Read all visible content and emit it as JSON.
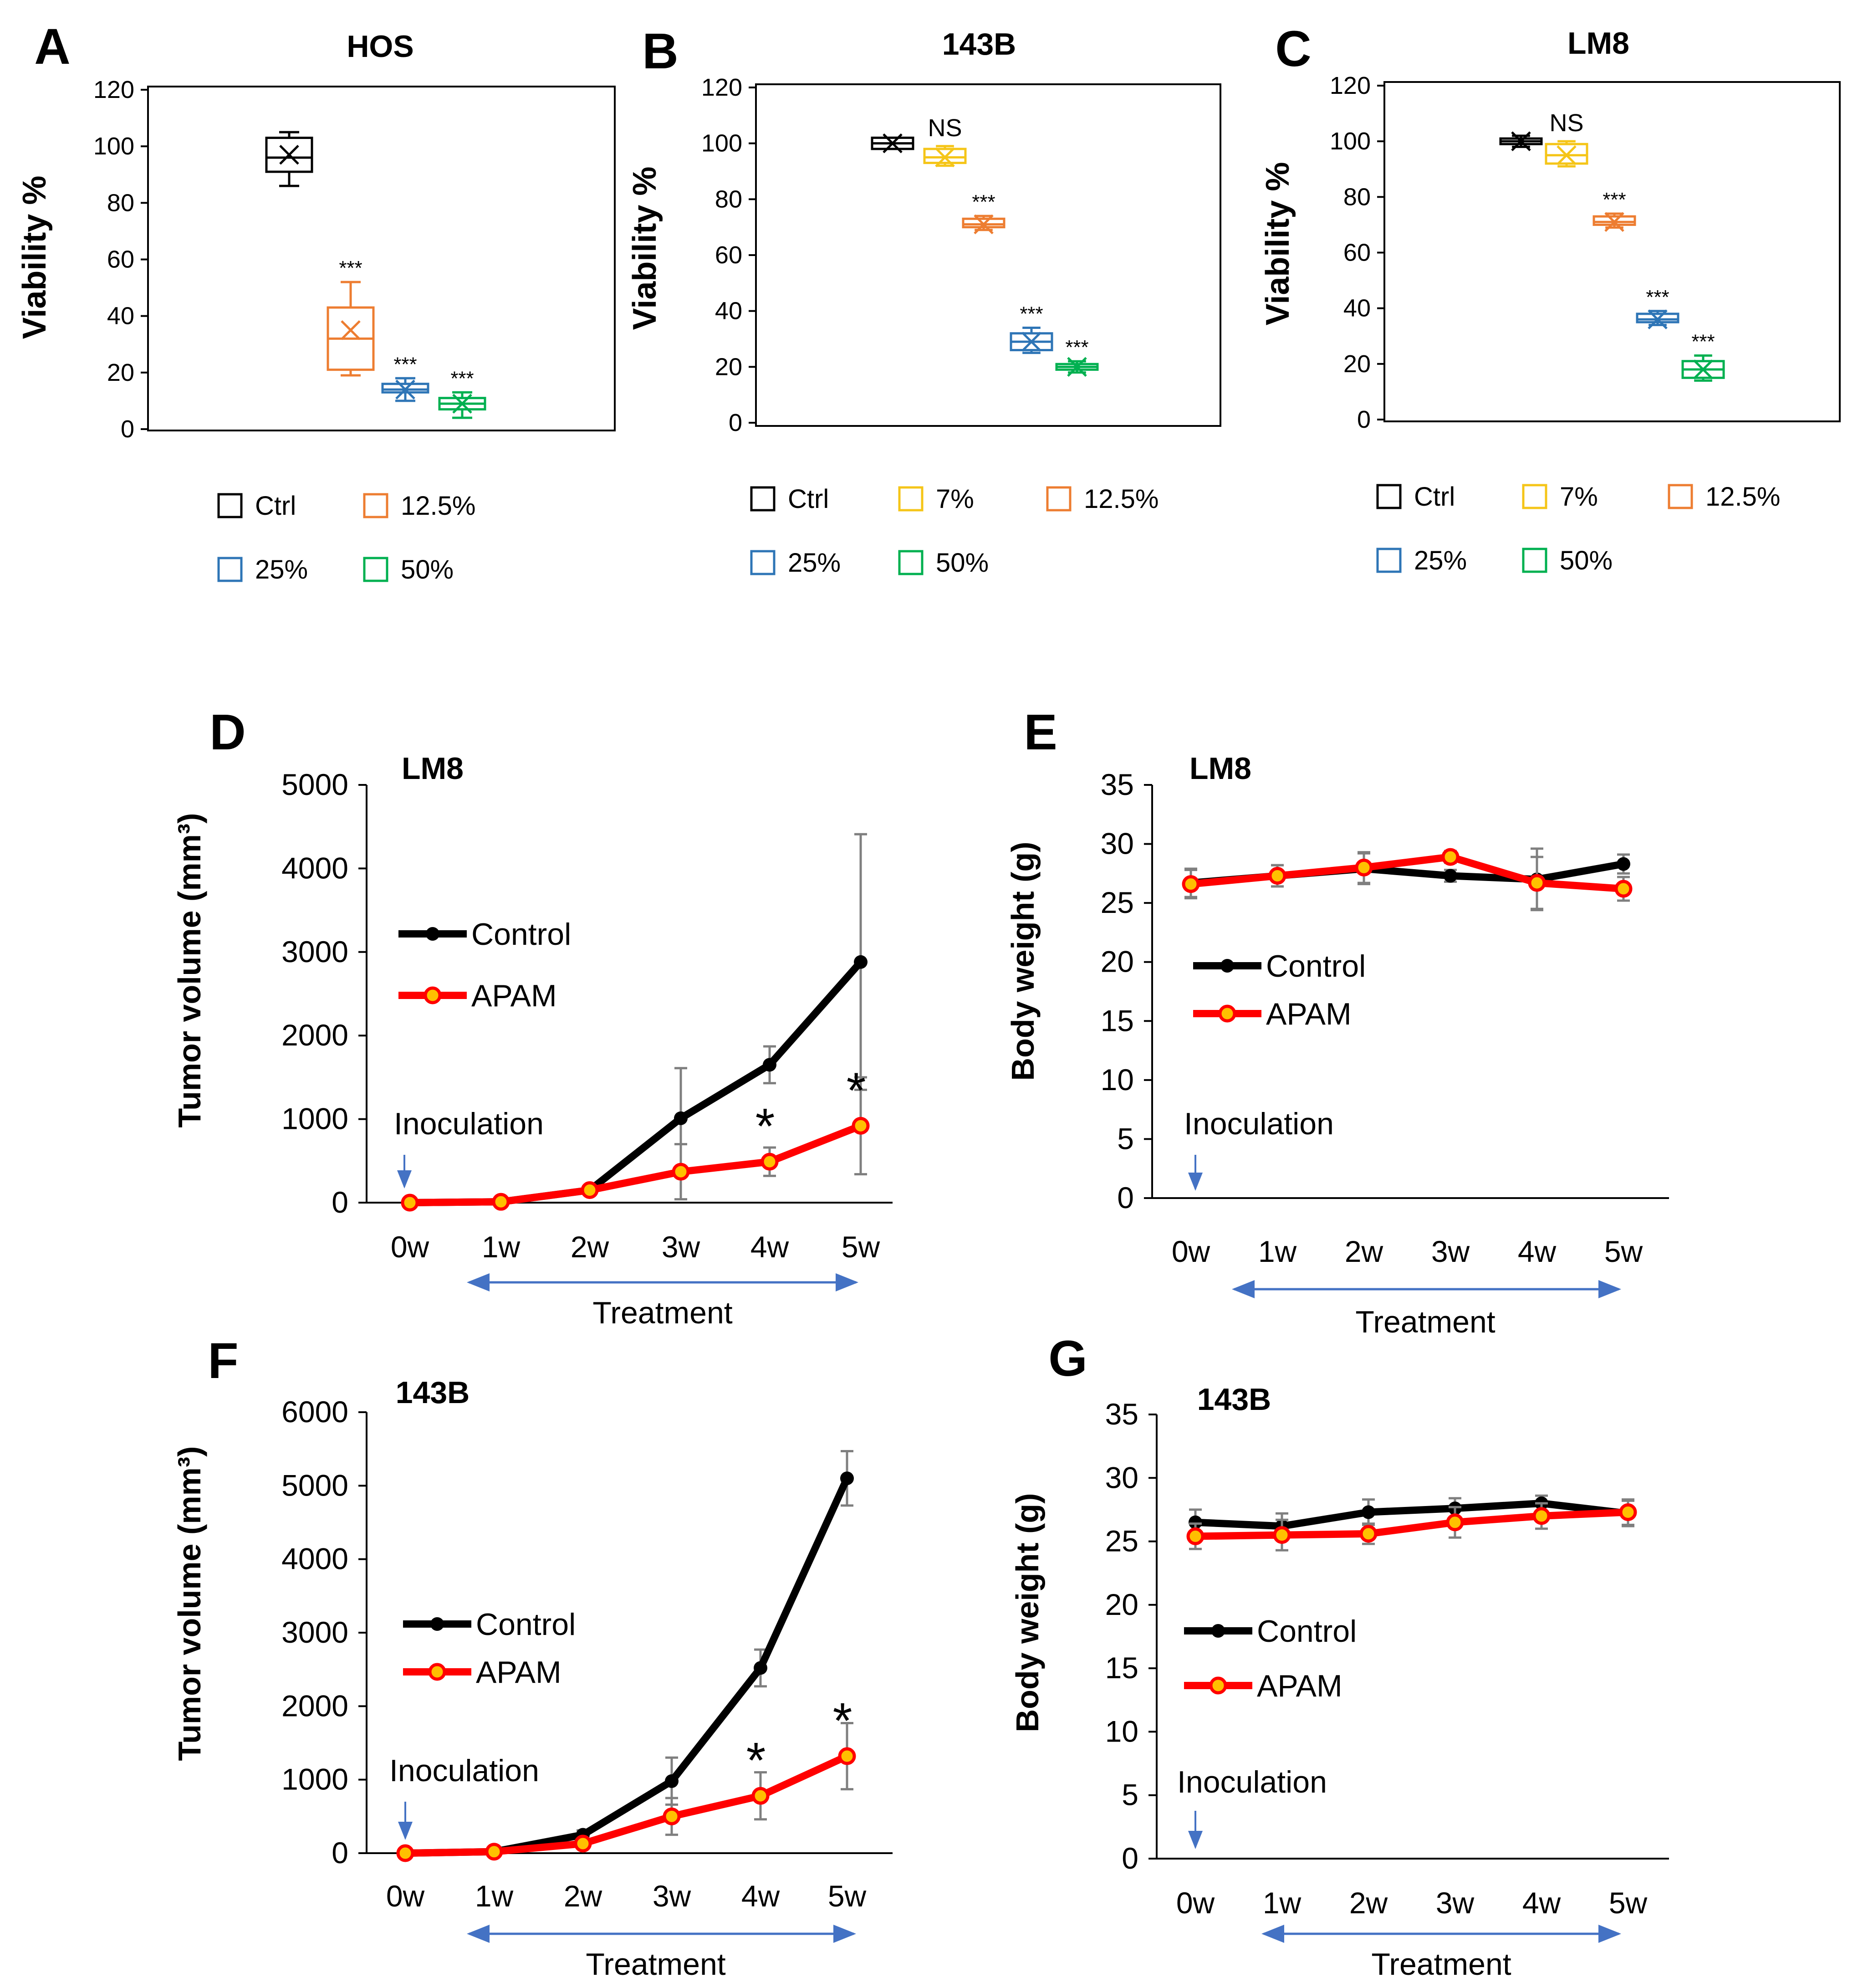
{
  "colors": {
    "ctrl": "#000000",
    "c7": "#f5c518",
    "c12_5": "#ed7d31",
    "c25": "#2e75b6",
    "c50": "#00b050",
    "control_line": "#000000",
    "apam_line": "#ff0000",
    "apam_marker": "#ff0000",
    "apam_marker_fill": "#ffc000",
    "arrow": "#4472c4",
    "errorbar": "#7f7f7f"
  },
  "chart_data": [
    {
      "id": "A",
      "type": "box",
      "panel_label": "A",
      "title": "HOS",
      "ylabel": "Viability %",
      "ylim": [
        0,
        120
      ],
      "yticks": [
        0,
        20,
        40,
        60,
        80,
        100,
        120
      ],
      "legend": [
        "Ctrl",
        "12.5%",
        "25%",
        "50%"
      ],
      "series": [
        {
          "name": "Ctrl",
          "color_key": "ctrl",
          "min": 86,
          "q1": 91,
          "median": 96,
          "q3": 103,
          "max": 105,
          "mean": 97,
          "sig": ""
        },
        {
          "name": "12.5%",
          "color_key": "c12_5",
          "min": 19,
          "q1": 21,
          "median": 32,
          "q3": 43,
          "max": 52,
          "mean": 35,
          "sig": "***"
        },
        {
          "name": "25%",
          "color_key": "c25",
          "min": 10,
          "q1": 13,
          "median": 14,
          "q3": 16,
          "max": 18,
          "mean": 14,
          "sig": "***"
        },
        {
          "name": "50%",
          "color_key": "c50",
          "min": 4,
          "q1": 7,
          "median": 9,
          "q3": 11,
          "max": 13,
          "mean": 9,
          "sig": "***"
        }
      ]
    },
    {
      "id": "B",
      "type": "box",
      "panel_label": "B",
      "title": "143B",
      "ylabel": "Viability %",
      "ylim": [
        0,
        120
      ],
      "yticks": [
        0,
        20,
        40,
        60,
        80,
        100,
        120
      ],
      "legend": [
        "Ctrl",
        "7%",
        "12.5%",
        "25%",
        "50%"
      ],
      "series": [
        {
          "name": "Ctrl",
          "color_key": "ctrl",
          "min": 98,
          "q1": 98,
          "median": 100,
          "q3": 102,
          "max": 102,
          "mean": 100,
          "sig": ""
        },
        {
          "name": "7%",
          "color_key": "c7",
          "min": 92,
          "q1": 93,
          "median": 95,
          "q3": 98,
          "max": 99,
          "mean": 95,
          "sig": "NS"
        },
        {
          "name": "12.5%",
          "color_key": "c12_5",
          "min": 69,
          "q1": 70,
          "median": 71,
          "q3": 73,
          "max": 74,
          "mean": 71,
          "sig": "***"
        },
        {
          "name": "25%",
          "color_key": "c25",
          "min": 25,
          "q1": 26,
          "median": 29,
          "q3": 32,
          "max": 34,
          "mean": 29,
          "sig": "***"
        },
        {
          "name": "50%",
          "color_key": "c50",
          "min": 18,
          "q1": 19,
          "median": 20,
          "q3": 21,
          "max": 22,
          "mean": 20,
          "sig": "***"
        }
      ]
    },
    {
      "id": "C",
      "type": "box",
      "panel_label": "C",
      "title": "LM8",
      "ylabel": "Viability %",
      "ylim": [
        0,
        120
      ],
      "yticks": [
        0,
        20,
        40,
        60,
        80,
        100,
        120
      ],
      "legend": [
        "Ctrl",
        "7%",
        "12.5%",
        "25%",
        "50%"
      ],
      "series": [
        {
          "name": "Ctrl",
          "color_key": "ctrl",
          "min": 98,
          "q1": 99,
          "median": 100,
          "q3": 101,
          "max": 102,
          "mean": 100,
          "sig": ""
        },
        {
          "name": "7%",
          "color_key": "c7",
          "min": 91,
          "q1": 92,
          "median": 95,
          "q3": 99,
          "max": 100,
          "mean": 95,
          "sig": "NS"
        },
        {
          "name": "12.5%",
          "color_key": "c12_5",
          "min": 69,
          "q1": 70,
          "median": 71,
          "q3": 73,
          "max": 74,
          "mean": 71,
          "sig": "***"
        },
        {
          "name": "25%",
          "color_key": "c25",
          "min": 34,
          "q1": 35,
          "median": 36,
          "q3": 38,
          "max": 39,
          "mean": 36,
          "sig": "***"
        },
        {
          "name": "50%",
          "color_key": "c50",
          "min": 14,
          "q1": 15,
          "median": 18,
          "q3": 21,
          "max": 23,
          "mean": 18,
          "sig": "***"
        }
      ]
    },
    {
      "id": "D",
      "type": "line",
      "panel_label": "D",
      "title": "LM8",
      "ylabel": "Tumor volume (mm³)",
      "ylim": [
        0,
        5000
      ],
      "yticks": [
        0,
        1000,
        2000,
        3000,
        4000,
        5000
      ],
      "categories": [
        "0w",
        "1w",
        "2w",
        "3w",
        "4w",
        "5w"
      ],
      "annotation": "Inoculation",
      "xlabel": "Treatment",
      "significance": [
        {
          "index": 4,
          "label": "*"
        },
        {
          "index": 5,
          "label": "*"
        }
      ],
      "series": [
        {
          "name": "Control",
          "values": [
            0,
            10,
            150,
            1010,
            1650,
            2880
          ],
          "err": [
            0,
            0,
            0,
            600,
            220,
            1530
          ]
        },
        {
          "name": "APAM",
          "values": [
            0,
            10,
            150,
            370,
            490,
            920
          ],
          "err": [
            0,
            0,
            0,
            330,
            170,
            580
          ]
        }
      ]
    },
    {
      "id": "E",
      "type": "line",
      "panel_label": "E",
      "title": "LM8",
      "ylabel": "Body weight (g)",
      "ylim": [
        0,
        35
      ],
      "yticks": [
        0,
        5,
        10,
        15,
        20,
        25,
        30,
        35
      ],
      "categories": [
        "0w",
        "1w",
        "2w",
        "3w",
        "4w",
        "5w"
      ],
      "annotation": "Inoculation",
      "xlabel": "Treatment",
      "significance": [],
      "series": [
        {
          "name": "Control",
          "values": [
            26.7,
            27.3,
            27.9,
            27.3,
            27.0,
            28.3
          ],
          "err": [
            1.2,
            0.9,
            1.3,
            0.5,
            2.6,
            0.8
          ]
        },
        {
          "name": "APAM",
          "values": [
            26.6,
            27.3,
            28.0,
            28.9,
            26.7,
            26.2
          ],
          "err": [
            1.2,
            0.9,
            1.3,
            0.5,
            2.2,
            1.0
          ]
        }
      ]
    },
    {
      "id": "F",
      "type": "line",
      "panel_label": "F",
      "title": "143B",
      "ylabel": "Tumor volume (mm³)",
      "ylim": [
        0,
        6000
      ],
      "yticks": [
        0,
        1000,
        2000,
        3000,
        4000,
        5000,
        6000
      ],
      "categories": [
        "0w",
        "1w",
        "2w",
        "3w",
        "4w",
        "5w"
      ],
      "annotation": "Inoculation",
      "xlabel": "Treatment",
      "significance": [
        {
          "index": 4,
          "label": "*"
        },
        {
          "index": 5,
          "label": "*"
        }
      ],
      "series": [
        {
          "name": "Control",
          "values": [
            0,
            20,
            250,
            980,
            2520,
            5100
          ],
          "err": [
            0,
            0,
            60,
            320,
            250,
            370
          ]
        },
        {
          "name": "APAM",
          "values": [
            0,
            20,
            130,
            500,
            780,
            1320
          ],
          "err": [
            0,
            0,
            40,
            250,
            320,
            450
          ]
        }
      ]
    },
    {
      "id": "G",
      "type": "line",
      "panel_label": "G",
      "title": "143B",
      "ylabel": "Body weight (g)",
      "ylim": [
        0,
        35
      ],
      "yticks": [
        0,
        5,
        10,
        15,
        20,
        25,
        30,
        35
      ],
      "categories": [
        "0w",
        "1w",
        "2w",
        "3w",
        "4w",
        "5w"
      ],
      "annotation": "Inoculation",
      "xlabel": "Treatment",
      "significance": [],
      "series": [
        {
          "name": "Control",
          "values": [
            26.5,
            26.2,
            27.3,
            27.6,
            28.0,
            27.2
          ],
          "err": [
            1.0,
            1.0,
            1.0,
            0.8,
            0.6,
            1.0
          ]
        },
        {
          "name": "APAM",
          "values": [
            25.4,
            25.5,
            25.6,
            26.5,
            27.0,
            27.3
          ],
          "err": [
            1.0,
            1.2,
            0.8,
            1.2,
            1.0,
            1.0
          ]
        }
      ]
    }
  ]
}
